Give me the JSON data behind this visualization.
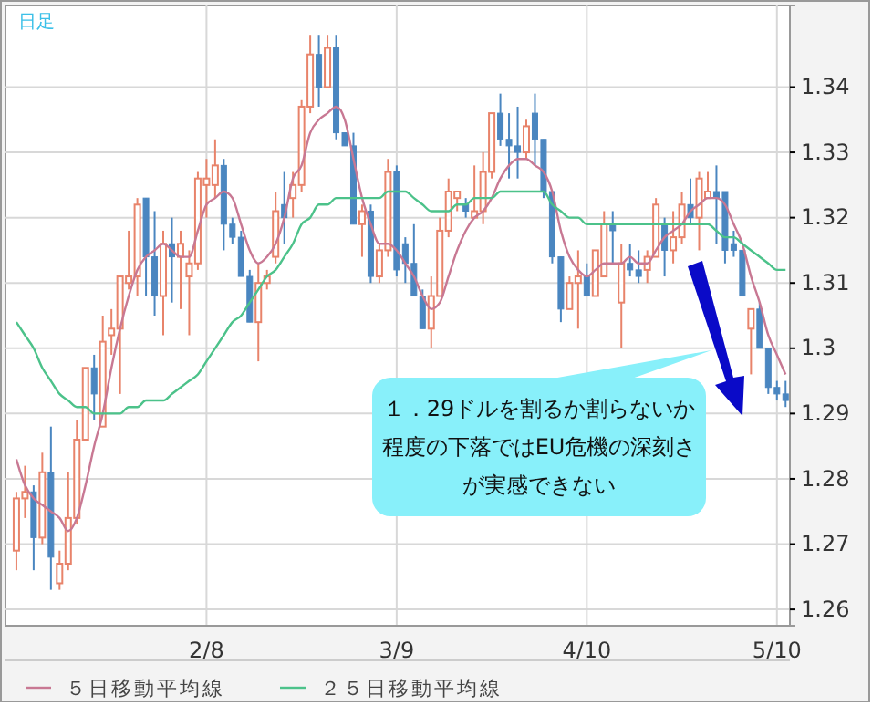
{
  "chart_data": {
    "type": "candlestick",
    "title": "日足",
    "categories": [
      null,
      null,
      null,
      null,
      null,
      null,
      null,
      null,
      null,
      null,
      null,
      null,
      null,
      null,
      null,
      null,
      null,
      null,
      null,
      null,
      null,
      null,
      "2/8",
      null,
      null,
      null,
      null,
      null,
      null,
      null,
      null,
      null,
      null,
      null,
      null,
      null,
      null,
      null,
      null,
      null,
      null,
      null,
      null,
      null,
      "3/9",
      null,
      null,
      null,
      null,
      null,
      null,
      null,
      null,
      null,
      null,
      null,
      null,
      null,
      null,
      null,
      null,
      null,
      null,
      null,
      null,
      null,
      "4/10",
      null,
      null,
      null,
      null,
      null,
      null,
      null,
      null,
      null,
      null,
      null,
      null,
      null,
      null,
      null,
      null,
      null,
      null,
      null,
      null,
      null,
      "5/10",
      null
    ],
    "ohlc": [
      [
        1.269,
        1.278,
        1.266,
        1.277
      ],
      [
        1.277,
        1.282,
        1.274,
        1.278
      ],
      [
        1.278,
        1.279,
        1.266,
        1.271
      ],
      [
        1.271,
        1.284,
        1.27,
        1.281
      ],
      [
        1.281,
        1.288,
        1.263,
        1.268
      ],
      [
        1.264,
        1.269,
        1.263,
        1.267
      ],
      [
        1.267,
        1.281,
        1.266,
        1.274
      ],
      [
        1.274,
        1.289,
        1.273,
        1.286
      ],
      [
        1.286,
        1.297,
        1.286,
        1.297
      ],
      [
        1.297,
        1.299,
        1.289,
        1.293
      ],
      [
        1.288,
        1.305,
        1.288,
        1.301
      ],
      [
        1.302,
        1.306,
        1.299,
        1.303
      ],
      [
        1.303,
        1.311,
        1.293,
        1.311
      ],
      [
        1.31,
        1.318,
        1.309,
        1.311
      ],
      [
        1.311,
        1.323,
        1.308,
        1.322
      ],
      [
        1.323,
        1.323,
        1.308,
        1.314
      ],
      [
        1.314,
        1.321,
        1.305,
        1.308
      ],
      [
        1.308,
        1.318,
        1.302,
        1.316
      ],
      [
        1.316,
        1.32,
        1.307,
        1.314
      ],
      [
        1.314,
        1.318,
        1.306,
        1.316
      ],
      [
        1.311,
        1.315,
        1.302,
        1.313
      ],
      [
        1.313,
        1.327,
        1.312,
        1.326
      ],
      [
        1.325,
        1.329,
        1.32,
        1.326
      ],
      [
        1.325,
        1.332,
        1.323,
        1.328
      ],
      [
        1.328,
        1.329,
        1.315,
        1.319
      ],
      [
        1.319,
        1.32,
        1.316,
        1.317
      ],
      [
        1.317,
        1.318,
        1.311,
        1.311
      ],
      [
        1.311,
        1.312,
        1.304,
        1.304
      ],
      [
        1.304,
        1.313,
        1.298,
        1.31
      ],
      [
        1.31,
        1.312,
        1.309,
        1.311
      ],
      [
        1.314,
        1.324,
        1.313,
        1.321
      ],
      [
        1.322,
        1.327,
        1.316,
        1.32
      ],
      [
        1.323,
        1.327,
        1.32,
        1.325
      ],
      [
        1.325,
        1.338,
        1.324,
        1.337
      ],
      [
        1.337,
        1.348,
        1.336,
        1.345
      ],
      [
        1.345,
        1.348,
        1.337,
        1.34
      ],
      [
        1.34,
        1.348,
        1.34,
        1.346
      ],
      [
        1.346,
        1.348,
        1.332,
        1.333
      ],
      [
        1.333,
        1.333,
        1.331,
        1.331
      ],
      [
        1.331,
        1.333,
        1.319,
        1.319
      ],
      [
        1.319,
        1.322,
        1.314,
        1.321
      ],
      [
        1.321,
        1.322,
        1.31,
        1.311
      ],
      [
        1.311,
        1.316,
        1.31,
        1.315
      ],
      [
        1.315,
        1.329,
        1.314,
        1.327
      ],
      [
        1.327,
        1.328,
        1.311,
        1.312
      ],
      [
        1.316,
        1.317,
        1.31,
        1.313
      ],
      [
        1.313,
        1.319,
        1.308,
        1.308
      ],
      [
        1.308,
        1.309,
        1.303,
        1.303
      ],
      [
        1.303,
        1.311,
        1.3,
        1.308
      ],
      [
        1.308,
        1.32,
        1.308,
        1.318
      ],
      [
        1.318,
        1.326,
        1.317,
        1.324
      ],
      [
        1.323,
        1.324,
        1.321,
        1.324
      ],
      [
        1.322,
        1.323,
        1.32,
        1.321
      ],
      [
        1.32,
        1.328,
        1.32,
        1.321
      ],
      [
        1.321,
        1.33,
        1.319,
        1.327
      ],
      [
        1.327,
        1.336,
        1.326,
        1.336
      ],
      [
        1.336,
        1.339,
        1.331,
        1.332
      ],
      [
        1.332,
        1.336,
        1.326,
        1.331
      ],
      [
        1.331,
        1.337,
        1.326,
        1.33
      ],
      [
        1.33,
        1.335,
        1.329,
        1.334
      ],
      [
        1.336,
        1.339,
        1.328,
        1.332
      ],
      [
        1.332,
        1.332,
        1.323,
        1.324
      ],
      [
        1.324,
        1.324,
        1.313,
        1.314
      ],
      [
        1.314,
        1.314,
        1.304,
        1.306
      ],
      [
        1.306,
        1.311,
        1.306,
        1.31
      ],
      [
        1.31,
        1.315,
        1.303,
        1.311
      ],
      [
        1.311,
        1.313,
        1.308,
        1.308
      ],
      [
        1.308,
        1.315,
        1.308,
        1.315
      ],
      [
        1.311,
        1.321,
        1.311,
        1.319
      ],
      [
        1.319,
        1.321,
        1.313,
        1.318
      ],
      [
        1.307,
        1.316,
        1.3,
        1.313
      ],
      [
        1.313,
        1.316,
        1.311,
        1.312
      ],
      [
        1.312,
        1.315,
        1.31,
        1.311
      ],
      [
        1.312,
        1.315,
        1.31,
        1.314
      ],
      [
        1.314,
        1.323,
        1.314,
        1.322
      ],
      [
        1.319,
        1.32,
        1.311,
        1.315
      ],
      [
        1.315,
        1.321,
        1.313,
        1.317
      ],
      [
        1.317,
        1.324,
        1.316,
        1.322
      ],
      [
        1.322,
        1.326,
        1.319,
        1.32
      ],
      [
        1.32,
        1.327,
        1.315,
        1.326
      ],
      [
        1.323,
        1.327,
        1.323,
        1.324
      ],
      [
        1.324,
        1.328,
        1.316,
        1.323
      ],
      [
        1.324,
        1.324,
        1.313,
        1.315
      ],
      [
        1.316,
        1.318,
        1.314,
        1.315
      ],
      [
        1.315,
        1.315,
        1.308,
        1.308
      ],
      [
        1.303,
        1.306,
        1.296,
        1.306
      ],
      [
        1.306,
        1.307,
        1.3,
        1.3
      ],
      [
        1.3,
        1.3,
        1.293,
        1.294
      ],
      [
        1.294,
        1.295,
        1.292,
        1.293
      ],
      [
        1.293,
        1.295,
        1.291,
        1.292
      ]
    ],
    "colors": [
      "#e8836a",
      "#e8836a",
      "#4a86c0",
      "#e8836a",
      "#4a86c0",
      "#e8836a",
      "#e8836a",
      "#e8836a",
      "#e8836a",
      "#4a86c0",
      "#e8836a",
      "#e8836a",
      "#e8836a",
      "#e8836a",
      "#e8836a",
      "#4a86c0",
      "#4a86c0",
      "#e8836a",
      "#4a86c0",
      "#e8836a",
      "#e8836a",
      "#e8836a",
      "#e8836a",
      "#e8836a",
      "#4a86c0",
      "#4a86c0",
      "#4a86c0",
      "#4a86c0",
      "#e8836a",
      "#e8836a",
      "#e8836a",
      "#4a86c0",
      "#e8836a",
      "#e8836a",
      "#e8836a",
      "#4a86c0",
      "#e8836a",
      "#4a86c0",
      "#4a86c0",
      "#4a86c0",
      "#e8836a",
      "#4a86c0",
      "#e8836a",
      "#e8836a",
      "#4a86c0",
      "#4a86c0",
      "#4a86c0",
      "#4a86c0",
      "#e8836a",
      "#e8836a",
      "#e8836a",
      "#e8836a",
      "#4a86c0",
      "#e8836a",
      "#e8836a",
      "#e8836a",
      "#4a86c0",
      "#4a86c0",
      "#4a86c0",
      "#e8836a",
      "#4a86c0",
      "#4a86c0",
      "#4a86c0",
      "#4a86c0",
      "#e8836a",
      "#e8836a",
      "#4a86c0",
      "#e8836a",
      "#e8836a",
      "#4a86c0",
      "#e8836a",
      "#4a86c0",
      "#4a86c0",
      "#e8836a",
      "#e8836a",
      "#4a86c0",
      "#e8836a",
      "#e8836a",
      "#4a86c0",
      "#e8836a",
      "#e8836a",
      "#4a86c0",
      "#4a86c0",
      "#4a86c0",
      "#4a86c0",
      "#e8836a",
      "#4a86c0",
      "#4a86c0",
      "#4a86c0",
      "#4a86c0"
    ],
    "series": [
      {
        "type": "line",
        "name": "５日移動平均線",
        "color": "#c87893",
        "values": [
          1.283,
          1.279,
          1.277,
          1.276,
          1.275,
          1.274,
          1.272,
          1.274,
          1.279,
          1.285,
          1.29,
          1.297,
          1.303,
          1.308,
          1.312,
          1.314,
          1.315,
          1.316,
          1.315,
          1.314,
          1.314,
          1.318,
          1.322,
          1.323,
          1.324,
          1.323,
          1.319,
          1.315,
          1.313,
          1.314,
          1.316,
          1.32,
          1.326,
          1.328,
          1.333,
          1.335,
          1.336,
          1.337,
          1.335,
          1.329,
          1.323,
          1.319,
          1.316,
          1.316,
          1.315,
          1.313,
          1.311,
          1.308,
          1.306,
          1.307,
          1.311,
          1.315,
          1.318,
          1.32,
          1.321,
          1.323,
          1.326,
          1.328,
          1.329,
          1.329,
          1.328,
          1.327,
          1.324,
          1.318,
          1.314,
          1.312,
          1.311,
          1.312,
          1.313,
          1.313,
          1.313,
          1.314,
          1.313,
          1.313,
          1.315,
          1.317,
          1.318,
          1.319,
          1.321,
          1.322,
          1.323,
          1.323,
          1.322,
          1.319,
          1.316,
          1.311,
          1.307,
          1.302,
          1.299,
          1.296
        ]
      },
      {
        "type": "line",
        "name": "２５日移動平均線",
        "color": "#4cc28a",
        "values": [
          1.304,
          1.302,
          1.3,
          1.297,
          1.295,
          1.293,
          1.292,
          1.291,
          1.291,
          1.29,
          1.29,
          1.29,
          1.29,
          1.291,
          1.291,
          1.292,
          1.292,
          1.292,
          1.293,
          1.294,
          1.295,
          1.296,
          1.298,
          1.3,
          1.302,
          1.304,
          1.305,
          1.307,
          1.309,
          1.311,
          1.312,
          1.314,
          1.316,
          1.319,
          1.32,
          1.322,
          1.322,
          1.323,
          1.323,
          1.323,
          1.323,
          1.323,
          1.323,
          1.324,
          1.324,
          1.324,
          1.323,
          1.322,
          1.321,
          1.321,
          1.321,
          1.322,
          1.322,
          1.323,
          1.323,
          1.323,
          1.324,
          1.324,
          1.324,
          1.324,
          1.324,
          1.324,
          1.322,
          1.321,
          1.32,
          1.32,
          1.319,
          1.319,
          1.319,
          1.319,
          1.319,
          1.319,
          1.319,
          1.319,
          1.319,
          1.319,
          1.319,
          1.319,
          1.319,
          1.319,
          1.319,
          1.318,
          1.317,
          1.317,
          1.316,
          1.315,
          1.314,
          1.313,
          1.312,
          1.312
        ]
      }
    ],
    "ylim": [
      1.2575,
      1.3525
    ],
    "yticks": [
      1.26,
      1.27,
      1.28,
      1.29,
      1.3,
      1.31,
      1.32,
      1.33,
      1.34
    ],
    "grid": true,
    "legend": "bottom",
    "annotations": [
      "１．29ドルを割るか割らないか程度の下落ではEU危機の深刻さが実感できない"
    ]
  }
}
